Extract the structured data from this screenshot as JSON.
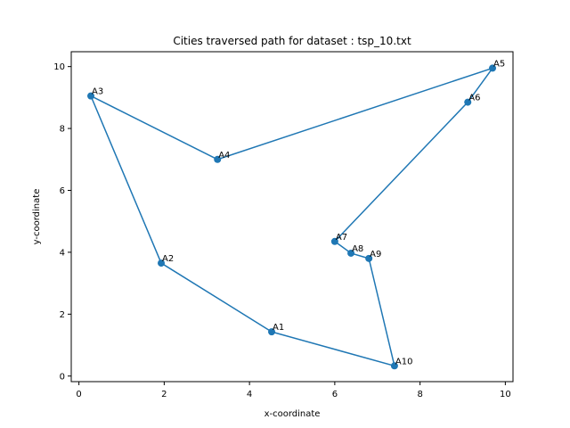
{
  "chart_data": {
    "type": "line",
    "title": "Cities traversed path for dataset : tsp_10.txt",
    "xlabel": "x-coordinate",
    "ylabel": "y-coordinate",
    "xlim": [
      -0.18,
      10.18
    ],
    "ylim": [
      -0.18,
      10.48
    ],
    "xticks": [
      0,
      2,
      4,
      6,
      8,
      10
    ],
    "yticks": [
      0,
      2,
      4,
      6,
      8,
      10
    ],
    "grid": false,
    "series": [
      {
        "color": "#1f77b4",
        "marker": "circle",
        "points": [
          {
            "label": "A1",
            "x": 4.52,
            "y": 1.43
          },
          {
            "label": "A10",
            "x": 7.4,
            "y": 0.33
          },
          {
            "label": "A9",
            "x": 6.8,
            "y": 3.8
          },
          {
            "label": "A8",
            "x": 6.38,
            "y": 3.97
          },
          {
            "label": "A7",
            "x": 6.0,
            "y": 4.35
          },
          {
            "label": "A6",
            "x": 9.12,
            "y": 8.85
          },
          {
            "label": "A5",
            "x": 9.7,
            "y": 9.95
          },
          {
            "label": "A4",
            "x": 3.25,
            "y": 7.0
          },
          {
            "label": "A3",
            "x": 0.28,
            "y": 9.05
          },
          {
            "label": "A2",
            "x": 1.93,
            "y": 3.65
          }
        ]
      }
    ]
  }
}
